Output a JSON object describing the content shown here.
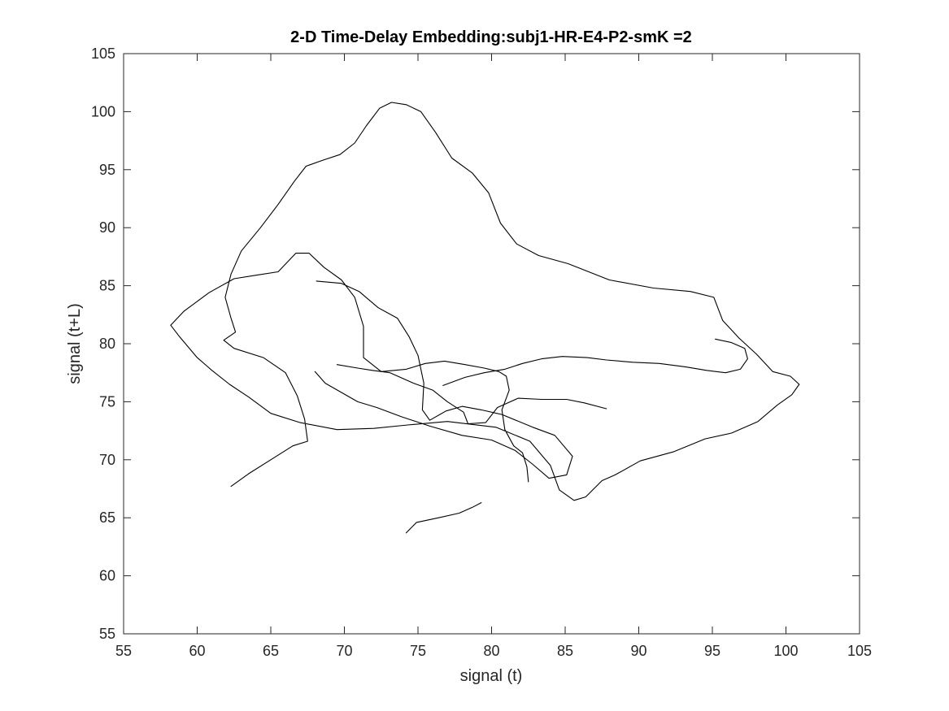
{
  "chart_data": {
    "type": "line",
    "title": "2-D Time-Delay Embedding:subj1-HR-E4-P2-smK =2",
    "xlabel": "signal (t)",
    "ylabel": "signal (t+L)",
    "xlim": [
      55,
      105
    ],
    "ylim": [
      55,
      105
    ],
    "xticks": [
      55,
      60,
      65,
      70,
      75,
      80,
      85,
      90,
      95,
      100,
      105
    ],
    "yticks": [
      55,
      60,
      65,
      70,
      75,
      80,
      85,
      90,
      95,
      100,
      105
    ],
    "grid": false,
    "box": true,
    "line_color": "#000000",
    "series": [
      {
        "points": [
          [
            62.3,
            67.7
          ],
          [
            63.5,
            68.8
          ],
          [
            65.0,
            70.0
          ],
          [
            66.5,
            71.2
          ],
          [
            67.5,
            71.6
          ],
          [
            67.3,
            73.5
          ],
          [
            66.8,
            75.5
          ],
          [
            66.0,
            77.5
          ],
          [
            64.5,
            78.8
          ],
          [
            62.5,
            79.6
          ],
          [
            61.8,
            80.3
          ],
          [
            62.6,
            81.0
          ],
          [
            62.3,
            82.2
          ],
          [
            61.9,
            84.0
          ],
          [
            62.3,
            86.0
          ],
          [
            63.0,
            88.0
          ],
          [
            64.3,
            90.0
          ],
          [
            65.5,
            92.0
          ],
          [
            66.6,
            94.0
          ],
          [
            67.4,
            95.3
          ],
          [
            68.5,
            95.8
          ],
          [
            69.7,
            96.3
          ],
          [
            70.7,
            97.3
          ],
          [
            71.5,
            98.8
          ],
          [
            72.4,
            100.3
          ],
          [
            73.2,
            100.8
          ],
          [
            74.2,
            100.6
          ],
          [
            75.2,
            100.0
          ],
          [
            76.2,
            98.2
          ],
          [
            77.3,
            96.0
          ],
          [
            78.7,
            94.7
          ],
          [
            79.8,
            93.0
          ],
          [
            80.6,
            90.4
          ],
          [
            81.7,
            88.6
          ],
          [
            83.2,
            87.6
          ],
          [
            85.2,
            86.9
          ],
          [
            88.0,
            85.5
          ],
          [
            91.0,
            84.8
          ],
          [
            93.5,
            84.5
          ],
          [
            95.1,
            84.0
          ],
          [
            95.7,
            82.0
          ],
          [
            96.8,
            80.5
          ],
          [
            98.0,
            79.1
          ],
          [
            99.1,
            77.6
          ],
          [
            100.3,
            77.2
          ],
          [
            100.9,
            76.5
          ],
          [
            100.4,
            75.6
          ],
          [
            99.4,
            74.7
          ],
          [
            98.1,
            73.3
          ],
          [
            96.3,
            72.3
          ],
          [
            94.5,
            71.8
          ],
          [
            92.4,
            70.7
          ],
          [
            90.1,
            69.9
          ],
          [
            88.4,
            68.7
          ],
          [
            87.5,
            68.2
          ],
          [
            86.4,
            66.8
          ],
          [
            85.6,
            66.5
          ],
          [
            84.6,
            67.4
          ],
          [
            84.0,
            69.5
          ],
          [
            82.6,
            71.6
          ],
          [
            80.3,
            72.8
          ],
          [
            77.0,
            73.3
          ],
          [
            74.3,
            73.0
          ],
          [
            72.0,
            72.7
          ],
          [
            69.5,
            72.6
          ],
          [
            67.0,
            73.2
          ],
          [
            65.0,
            74.0
          ],
          [
            63.5,
            75.4
          ],
          [
            62.2,
            76.5
          ],
          [
            61.0,
            77.7
          ],
          [
            60.0,
            78.8
          ],
          [
            58.8,
            80.6
          ],
          [
            58.2,
            81.6
          ],
          [
            59.1,
            82.8
          ],
          [
            60.8,
            84.4
          ],
          [
            62.5,
            85.6
          ],
          [
            64.0,
            85.9
          ],
          [
            65.5,
            86.2
          ],
          [
            66.7,
            87.8
          ],
          [
            67.6,
            87.8
          ],
          [
            68.6,
            86.6
          ],
          [
            69.8,
            85.5
          ],
          [
            70.7,
            84.0
          ],
          [
            71.3,
            81.5
          ],
          [
            71.3,
            78.8
          ],
          [
            72.5,
            77.6
          ],
          [
            74.2,
            77.8
          ],
          [
            75.5,
            78.3
          ],
          [
            76.8,
            78.5
          ],
          [
            78.2,
            78.2
          ],
          [
            79.5,
            77.9
          ],
          [
            80.5,
            77.6
          ],
          [
            81.0,
            77.2
          ],
          [
            81.2,
            76.0
          ],
          [
            80.7,
            74.3
          ],
          [
            80.9,
            72.6
          ],
          [
            81.5,
            71.2
          ],
          [
            82.1,
            70.6
          ],
          [
            82.4,
            69.4
          ],
          [
            82.5,
            68.1
          ]
        ]
      },
      {
        "points": [
          [
            68.1,
            85.4
          ],
          [
            69.8,
            85.2
          ],
          [
            71.0,
            84.5
          ],
          [
            72.3,
            83.1
          ],
          [
            73.6,
            82.2
          ],
          [
            74.4,
            80.6
          ],
          [
            75.0,
            79.0
          ],
          [
            75.4,
            76.6
          ],
          [
            75.3,
            74.3
          ],
          [
            75.8,
            73.4
          ],
          [
            76.9,
            74.2
          ],
          [
            78.0,
            74.6
          ],
          [
            79.3,
            74.3
          ],
          [
            80.7,
            73.9
          ],
          [
            82.8,
            72.8
          ],
          [
            84.3,
            72.1
          ],
          [
            85.5,
            70.3
          ],
          [
            85.1,
            68.7
          ],
          [
            83.9,
            68.4
          ],
          [
            82.8,
            69.6
          ],
          [
            81.6,
            70.8
          ],
          [
            80.0,
            71.7
          ],
          [
            78.0,
            72.1
          ],
          [
            75.8,
            72.9
          ],
          [
            73.9,
            73.7
          ],
          [
            72.2,
            74.5
          ],
          [
            70.9,
            75.0
          ],
          [
            69.8,
            75.8
          ],
          [
            68.7,
            76.6
          ],
          [
            68.0,
            77.6
          ]
        ]
      },
      {
        "points": [
          [
            74.2,
            63.7
          ],
          [
            74.9,
            64.6
          ],
          [
            76.4,
            65.0
          ],
          [
            77.8,
            65.4
          ],
          [
            78.7,
            65.9
          ],
          [
            79.3,
            66.3
          ]
        ]
      },
      {
        "points": [
          [
            76.7,
            76.4
          ],
          [
            78.2,
            77.1
          ],
          [
            79.5,
            77.5
          ],
          [
            80.9,
            77.8
          ],
          [
            82.1,
            78.3
          ],
          [
            83.4,
            78.7
          ],
          [
            84.8,
            78.9
          ],
          [
            86.5,
            78.8
          ],
          [
            87.8,
            78.6
          ],
          [
            89.6,
            78.4
          ],
          [
            91.4,
            78.3
          ],
          [
            93.2,
            78.0
          ],
          [
            94.6,
            77.7
          ],
          [
            95.9,
            77.5
          ],
          [
            96.9,
            77.8
          ],
          [
            97.4,
            78.7
          ],
          [
            97.2,
            79.6
          ],
          [
            96.3,
            80.1
          ],
          [
            95.2,
            80.4
          ]
        ]
      },
      {
        "points": [
          [
            69.5,
            78.2
          ],
          [
            70.9,
            77.9
          ],
          [
            71.9,
            77.7
          ],
          [
            73.1,
            77.5
          ],
          [
            74.7,
            76.6
          ],
          [
            76.0,
            76.0
          ],
          [
            77.0,
            75.0
          ],
          [
            78.1,
            74.1
          ],
          [
            78.4,
            73.1
          ],
          [
            79.6,
            73.2
          ],
          [
            80.4,
            74.5
          ],
          [
            81.8,
            75.3
          ],
          [
            83.4,
            75.2
          ],
          [
            85.1,
            75.2
          ],
          [
            86.3,
            74.9
          ],
          [
            87.8,
            74.4
          ]
        ]
      }
    ]
  }
}
